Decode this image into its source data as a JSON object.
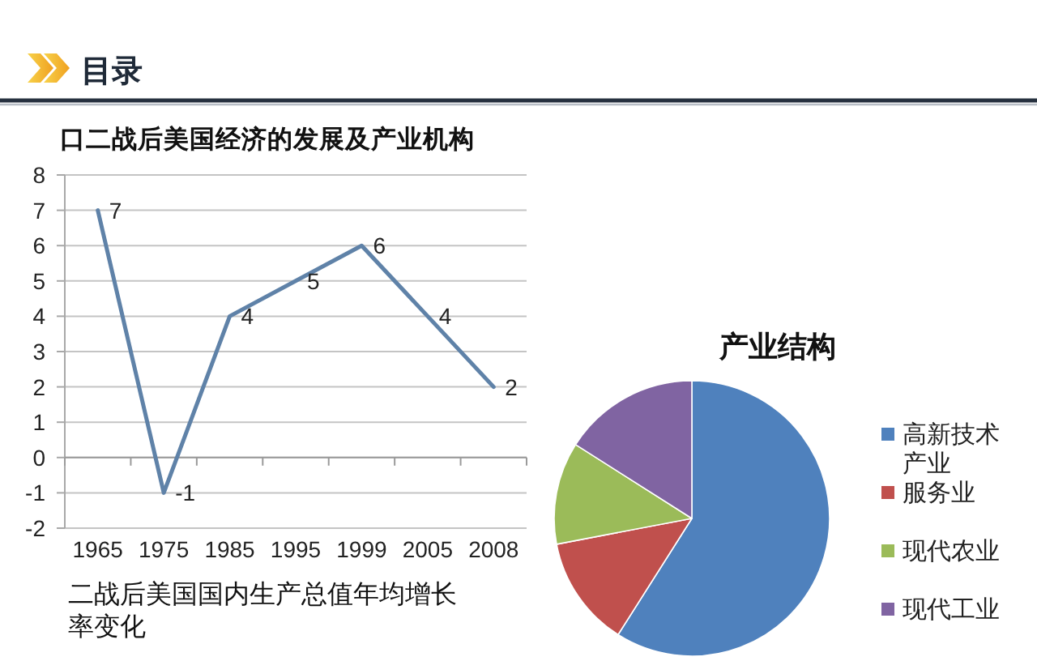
{
  "chart_data": [
    {
      "type": "line",
      "title": "目录",
      "subtitle": "口二战后美国经济的发展及产业机构",
      "categories": [
        "1965",
        "1975",
        "1985",
        "1995",
        "1999",
        "2005",
        "2008"
      ],
      "series": [
        {
          "color": "#5f82a8",
          "values": [
            7,
            -1,
            4,
            5,
            6,
            4,
            2
          ]
        }
      ],
      "ylim": [
        -2,
        8
      ],
      "yticks": [
        -2,
        -1,
        0,
        1,
        2,
        3,
        4,
        5,
        6,
        7,
        8
      ],
      "grid": "y",
      "data_labels": true,
      "line_style": "solid",
      "annotations": [
        "二战后美国国内生产总值年均增长率变化"
      ]
    },
    {
      "type": "pie",
      "title": "产业结构",
      "categories": [
        "高新技术产业",
        "服务业",
        "现代农业",
        "现代工业"
      ],
      "values": [
        59,
        13,
        12,
        16
      ],
      "colors": [
        "#4f81bd",
        "#c0504d",
        "#9bbb59",
        "#8064a2"
      ],
      "legend": "right"
    }
  ]
}
